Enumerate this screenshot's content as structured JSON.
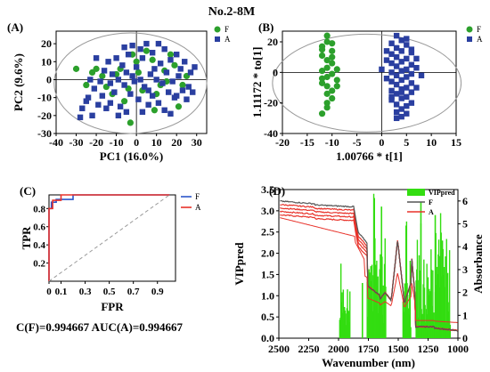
{
  "figure_title": "No.2-8M",
  "chart_data": [
    {
      "panel": "(A)",
      "type": "scatter",
      "xlabel": "PC1 (16.0%)",
      "ylabel": "PC2 (9.6%)",
      "xlim": [
        -40,
        35
      ],
      "ylim": [
        -30,
        27
      ],
      "x_ticks": [
        -40,
        -30,
        -20,
        -10,
        0,
        10,
        20,
        30
      ],
      "y_ticks": [
        -30,
        -20,
        -10,
        0,
        10,
        20
      ],
      "ellipse": true,
      "legend_position": "top-right",
      "series": [
        {
          "name": "F",
          "color": "#2ca02c",
          "marker": "circle",
          "points": [
            [
              -30,
              6
            ],
            [
              -25,
              -3
            ],
            [
              -20,
              6
            ],
            [
              -22,
              4
            ],
            [
              -15,
              -4
            ],
            [
              -17,
              2
            ],
            [
              -10,
              3
            ],
            [
              -8,
              6
            ],
            [
              -6,
              -12
            ],
            [
              -4,
              -5
            ],
            [
              -2,
              14
            ],
            [
              0,
              10
            ],
            [
              1,
              4
            ],
            [
              3,
              -6
            ],
            [
              5,
              16
            ],
            [
              8,
              11
            ],
            [
              10,
              -8
            ],
            [
              12,
              -3
            ],
            [
              14,
              5
            ],
            [
              15,
              -1
            ],
            [
              17,
              14
            ],
            [
              19,
              8
            ],
            [
              21,
              -15
            ],
            [
              23,
              -3
            ],
            [
              25,
              2
            ],
            [
              -12,
              -8
            ],
            [
              -3,
              -24
            ],
            [
              9,
              -17
            ]
          ]
        },
        {
          "name": "A",
          "color": "#2a3fa0",
          "marker": "square",
          "points": [
            [
              -28,
              -21
            ],
            [
              -27,
              -16
            ],
            [
              -25,
              -12
            ],
            [
              -24,
              -10
            ],
            [
              -22,
              -20
            ],
            [
              -21,
              -5
            ],
            [
              -19,
              -14
            ],
            [
              -18,
              -1
            ],
            [
              -17,
              -9
            ],
            [
              -16,
              5
            ],
            [
              -15,
              -16
            ],
            [
              -14,
              10
            ],
            [
              -13,
              -2
            ],
            [
              -12,
              3
            ],
            [
              -11,
              -7
            ],
            [
              -10,
              12
            ],
            [
              -9,
              0
            ],
            [
              -8,
              -15
            ],
            [
              -7,
              8
            ],
            [
              -6,
              -3
            ],
            [
              -5,
              4
            ],
            [
              -4,
              14
            ],
            [
              -3,
              -8
            ],
            [
              -2,
              2
            ],
            [
              -1,
              -1
            ],
            [
              0,
              7
            ],
            [
              1,
              -11
            ],
            [
              2,
              0
            ],
            [
              3,
              12
            ],
            [
              4,
              -4
            ],
            [
              5,
              20
            ],
            [
              6,
              -6
            ],
            [
              7,
              3
            ],
            [
              8,
              -9
            ],
            [
              9,
              6
            ],
            [
              10,
              0
            ],
            [
              11,
              -13
            ],
            [
              12,
              9
            ],
            [
              13,
              -2
            ],
            [
              14,
              17
            ],
            [
              15,
              4
            ],
            [
              16,
              -7
            ],
            [
              17,
              11
            ],
            [
              18,
              -1
            ],
            [
              19,
              -10
            ],
            [
              20,
              14
            ],
            [
              21,
              2
            ],
            [
              22,
              6
            ],
            [
              23,
              -6
            ],
            [
              24,
              10
            ],
            [
              26,
              -4
            ],
            [
              27,
              4
            ],
            [
              28,
              -7
            ],
            [
              29,
              7
            ],
            [
              -6,
              18
            ],
            [
              -2,
              19
            ],
            [
              2,
              17
            ],
            [
              11,
              20
            ],
            [
              -20,
              12
            ],
            [
              -9,
              -20
            ],
            [
              3,
              -18
            ],
            [
              6,
              -14
            ],
            [
              17,
              -19
            ],
            [
              -13,
              -13
            ],
            [
              -5,
              -18
            ],
            [
              8,
              15
            ],
            [
              14,
              -17
            ],
            [
              20,
              -9
            ],
            [
              -23,
              0
            ],
            [
              25,
              -11
            ]
          ]
        }
      ]
    },
    {
      "panel": "(B)",
      "type": "scatter",
      "xlabel": "1.00766 * t[1]",
      "ylabel": "1.11172 * to[1]",
      "xlim": [
        -20,
        15
      ],
      "ylim": [
        -40,
        27
      ],
      "x_ticks": [
        -20,
        -15,
        -10,
        -5,
        0,
        5,
        10,
        15
      ],
      "y_ticks": [
        -40,
        -20,
        0,
        20
      ],
      "ellipse": true,
      "legend_position": "top-right",
      "series": [
        {
          "name": "F",
          "color": "#2ca02c",
          "marker": "circle",
          "points": [
            [
              -11,
              24
            ],
            [
              -11,
              20
            ],
            [
              -12,
              17
            ],
            [
              -10,
              14
            ],
            [
              -12,
              11
            ],
            [
              -11,
              8
            ],
            [
              -10,
              6
            ],
            [
              -11,
              3
            ],
            [
              -12,
              1
            ],
            [
              -10,
              -1
            ],
            [
              -11,
              -3
            ],
            [
              -9,
              -5
            ],
            [
              -12,
              -7
            ],
            [
              -11,
              -9
            ],
            [
              -10,
              -12
            ],
            [
              -11,
              -14
            ],
            [
              -10,
              -17
            ],
            [
              -11,
              -20
            ],
            [
              -12,
              -4
            ],
            [
              -9,
              2
            ],
            [
              -10,
              10
            ],
            [
              -12,
              15
            ],
            [
              -9,
              -9
            ],
            [
              -11,
              -23
            ],
            [
              -12,
              -27
            ],
            [
              -10,
              19
            ]
          ]
        },
        {
          "name": "A",
          "color": "#2a3fa0",
          "marker": "square",
          "points": [
            [
              3,
              24
            ],
            [
              4,
              21
            ],
            [
              2,
              19
            ],
            [
              5,
              18
            ],
            [
              3,
              16
            ],
            [
              4,
              14
            ],
            [
              6,
              13
            ],
            [
              2,
              12
            ],
            [
              3,
              10
            ],
            [
              5,
              9
            ],
            [
              4,
              7
            ],
            [
              2,
              6
            ],
            [
              6,
              5
            ],
            [
              3,
              4
            ],
            [
              5,
              2
            ],
            [
              4,
              1
            ],
            [
              2,
              0
            ],
            [
              6,
              -1
            ],
            [
              3,
              -2
            ],
            [
              5,
              -3
            ],
            [
              4,
              -5
            ],
            [
              2,
              -6
            ],
            [
              6,
              -7
            ],
            [
              3,
              -8
            ],
            [
              5,
              -10
            ],
            [
              4,
              -11
            ],
            [
              2,
              -12
            ],
            [
              6,
              -13
            ],
            [
              3,
              -14
            ],
            [
              5,
              -16
            ],
            [
              4,
              -17
            ],
            [
              2,
              -18
            ],
            [
              6,
              -20
            ],
            [
              3,
              -21
            ],
            [
              5,
              -22
            ],
            [
              4,
              -24
            ],
            [
              3,
              -26
            ],
            [
              5,
              -27
            ],
            [
              4,
              -29
            ],
            [
              7,
              3
            ],
            [
              1,
              8
            ],
            [
              7,
              -10
            ],
            [
              1,
              -4
            ],
            [
              8,
              -2
            ],
            [
              0,
              2
            ],
            [
              5,
              22
            ],
            [
              2,
              -16
            ],
            [
              6,
              15
            ],
            [
              4,
              -13
            ],
            [
              7,
              9
            ],
            [
              1,
              14
            ],
            [
              3,
              -30
            ]
          ]
        }
      ]
    },
    {
      "panel": "(C)",
      "type": "line",
      "xlabel": "FPR",
      "ylabel": "TPR",
      "xlim": [
        0,
        1.05
      ],
      "ylim": [
        0,
        0.95
      ],
      "x_ticks": [
        "0",
        "0.1",
        "0.3",
        "0.5",
        "0.7",
        "0.9"
      ],
      "x_tick_values": [
        0,
        0.1,
        0.3,
        0.5,
        0.7,
        0.9
      ],
      "y_ticks": [
        0.2,
        0.4,
        0.6,
        0.8
      ],
      "legend_position": "top-right",
      "series": [
        {
          "name": "F",
          "color": "#2c56c9",
          "points": [
            [
              0,
              0
            ],
            [
              0,
              0.8
            ],
            [
              0.02,
              0.8
            ],
            [
              0.02,
              0.87
            ],
            [
              0.06,
              0.87
            ],
            [
              0.06,
              0.9
            ],
            [
              0.2,
              0.9
            ],
            [
              0.2,
              0.95
            ],
            [
              1,
              0.95
            ]
          ]
        },
        {
          "name": "A",
          "color": "#e8322a",
          "points": [
            [
              0,
              0
            ],
            [
              0,
              0.8
            ],
            [
              0.03,
              0.8
            ],
            [
              0.03,
              0.89
            ],
            [
              0.1,
              0.89
            ],
            [
              0.1,
              0.95
            ],
            [
              1,
              0.95
            ]
          ]
        },
        {
          "name": "",
          "color": "#9a9a9a",
          "dashed": true,
          "points": [
            [
              0,
              0
            ],
            [
              1,
              0.95
            ]
          ]
        }
      ]
    },
    {
      "panel": "(D)",
      "type": "bar",
      "xlabel": "Wavenumber (nm)",
      "ylabel": "VIPpred",
      "y2label": "Absorbance",
      "xlim": [
        2500,
        1000
      ],
      "ylim": [
        0,
        3.5
      ],
      "y2lim": [
        0,
        6.5
      ],
      "x_ticks": [
        2500,
        2250,
        2000,
        1750,
        1500,
        1250,
        1000
      ],
      "y_ticks": [
        0.0,
        0.5,
        1.0,
        1.5,
        2.0,
        2.5,
        3.0,
        3.5
      ],
      "y2_ticks": [
        0,
        1,
        2,
        3,
        4,
        5,
        6
      ],
      "legend_position": "top-right",
      "series": [
        {
          "name": "VIPpred",
          "color": "#33dd11"
        },
        {
          "name": "F",
          "color": "#555555"
        },
        {
          "name": "A",
          "color": "#e8322a"
        }
      ]
    }
  ],
  "auc_text": "C(F)=0.994667 AUC(A)=0.994667",
  "colors": {
    "F_green": "#2ca02c",
    "A_blue": "#2a3fa0",
    "roc_red": "#e8322a",
    "roc_blue": "#2c56c9",
    "vip_green": "#33dd11"
  }
}
